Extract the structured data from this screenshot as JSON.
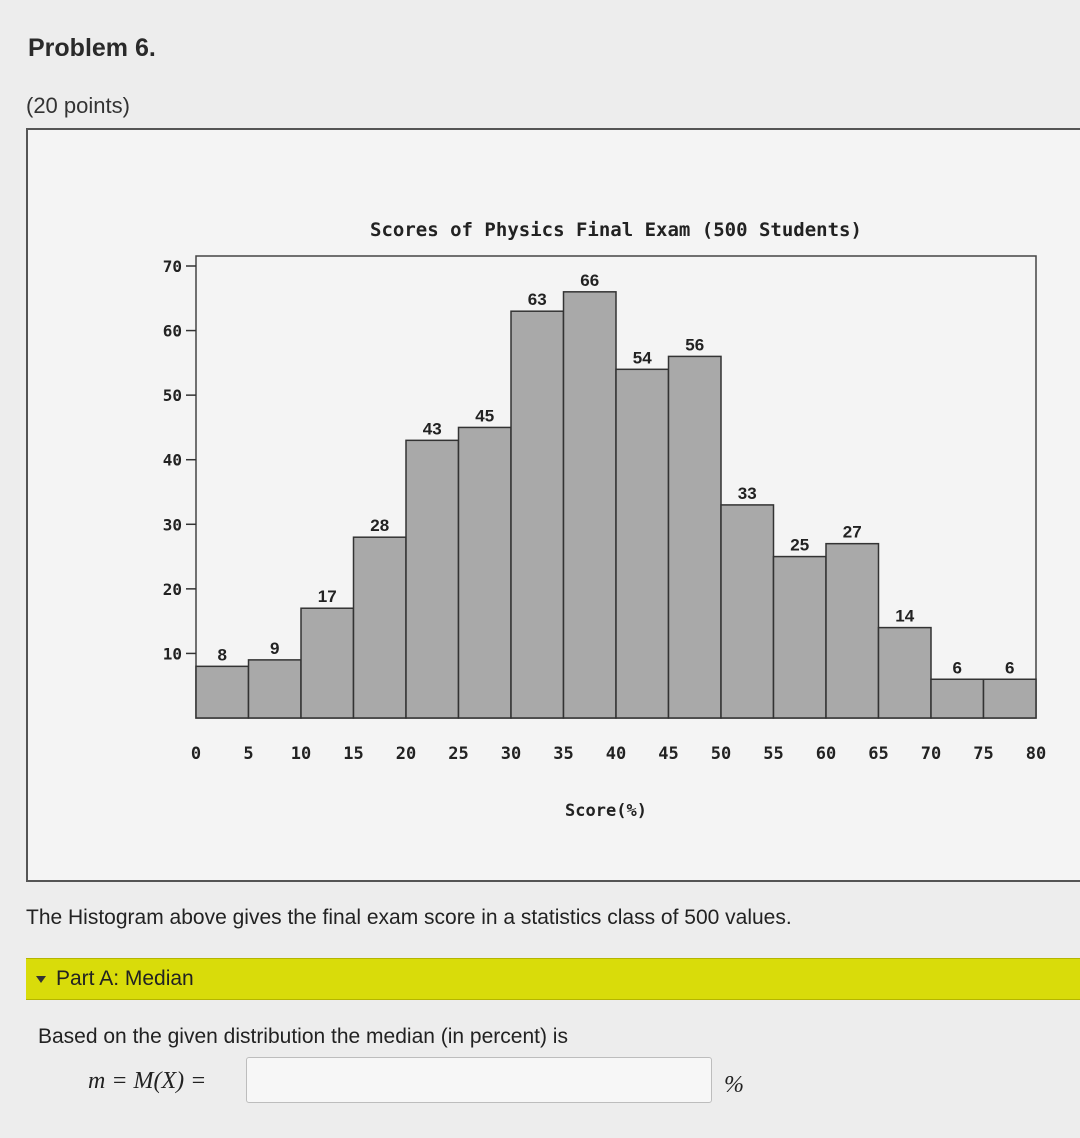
{
  "problem": {
    "title": "Problem 6.",
    "points": "(20 points)"
  },
  "chart_data": {
    "type": "bar",
    "title": "Scores of Physics Final Exam (500 Students)",
    "xlabel": "Score(%)",
    "ylabel": "",
    "bin_edges": [
      0,
      5,
      10,
      15,
      20,
      25,
      30,
      35,
      40,
      45,
      50,
      55,
      60,
      65,
      70,
      75,
      80
    ],
    "values": [
      8,
      9,
      17,
      28,
      43,
      45,
      63,
      66,
      54,
      56,
      33,
      25,
      27,
      14,
      6,
      6
    ],
    "x_ticks": [
      "0",
      "5",
      "10",
      "15",
      "20",
      "25",
      "30",
      "35",
      "40",
      "45",
      "50",
      "55",
      "60",
      "65",
      "70",
      "75",
      "80"
    ],
    "y_ticks": [
      "10",
      "20",
      "30",
      "40",
      "50",
      "60",
      "70"
    ],
    "ylim": [
      0,
      70
    ],
    "xlim": [
      0,
      80
    ],
    "grid": false,
    "bar_color": "#a9a9a9"
  },
  "description": "The Histogram above gives the final exam score in a statistics class of 500 values.",
  "part_a": {
    "label": "Part A: Median",
    "question": "Based on the given distribution the median (in percent) is",
    "formula": "m = M(X) =",
    "input_value": "",
    "unit": "%",
    "accent_color": "#d9dc0a"
  }
}
